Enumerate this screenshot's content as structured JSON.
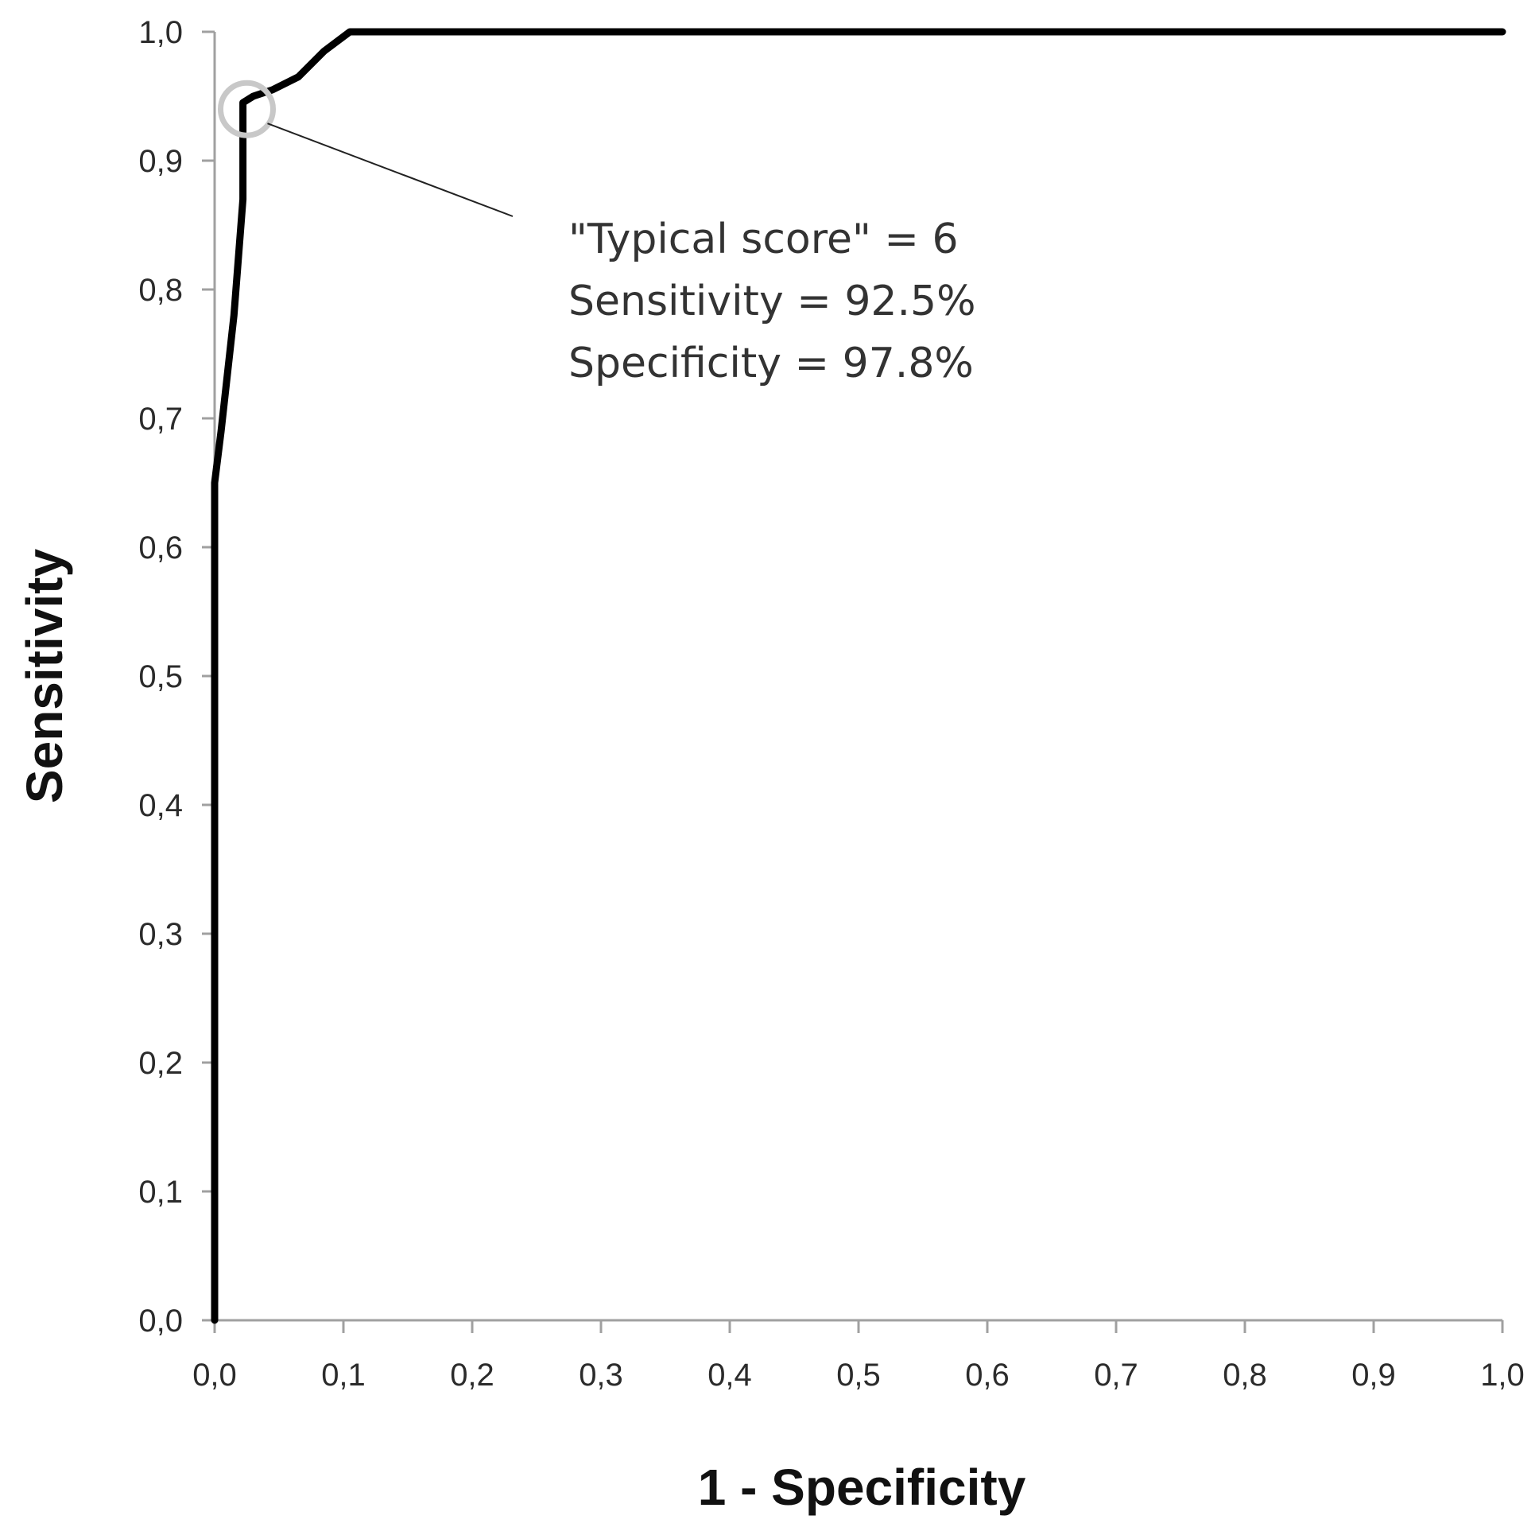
{
  "chart_data": {
    "type": "line",
    "xlabel": "1 - Specificity",
    "ylabel": "Sensitivity",
    "xlim": [
      0,
      1
    ],
    "ylim": [
      0,
      1
    ],
    "x_tick_labels": [
      "0,0",
      "0,1",
      "0,2",
      "0,3",
      "0,4",
      "0,5",
      "0,6",
      "0,7",
      "0,8",
      "0,9",
      "1,0"
    ],
    "y_tick_labels": [
      "0,0",
      "0,1",
      "0,2",
      "0,3",
      "0,4",
      "0,5",
      "0,6",
      "0,7",
      "0,8",
      "0,9",
      "1,0"
    ],
    "grid": false,
    "series": [
      {
        "x": [
          0.0,
          0.0,
          0.0,
          0.005,
          0.015,
          0.022,
          0.022,
          0.03,
          0.045,
          0.065,
          0.085,
          0.105,
          0.12,
          1.0
        ],
        "y": [
          0.0,
          0.3,
          0.65,
          0.69,
          0.78,
          0.87,
          0.945,
          0.95,
          0.955,
          0.965,
          0.985,
          1.0,
          1.0,
          1.0
        ],
        "color": "#000000"
      }
    ],
    "annotation": {
      "lines": [
        "\"Typical score\" = 6",
        "Sensitivity = 92.5%",
        "Specificity = 97.8%"
      ],
      "point": {
        "x": 0.025,
        "y": 0.94
      },
      "circle_color": "#c8c8c8"
    },
    "axis_color": "#a0a0a0"
  }
}
